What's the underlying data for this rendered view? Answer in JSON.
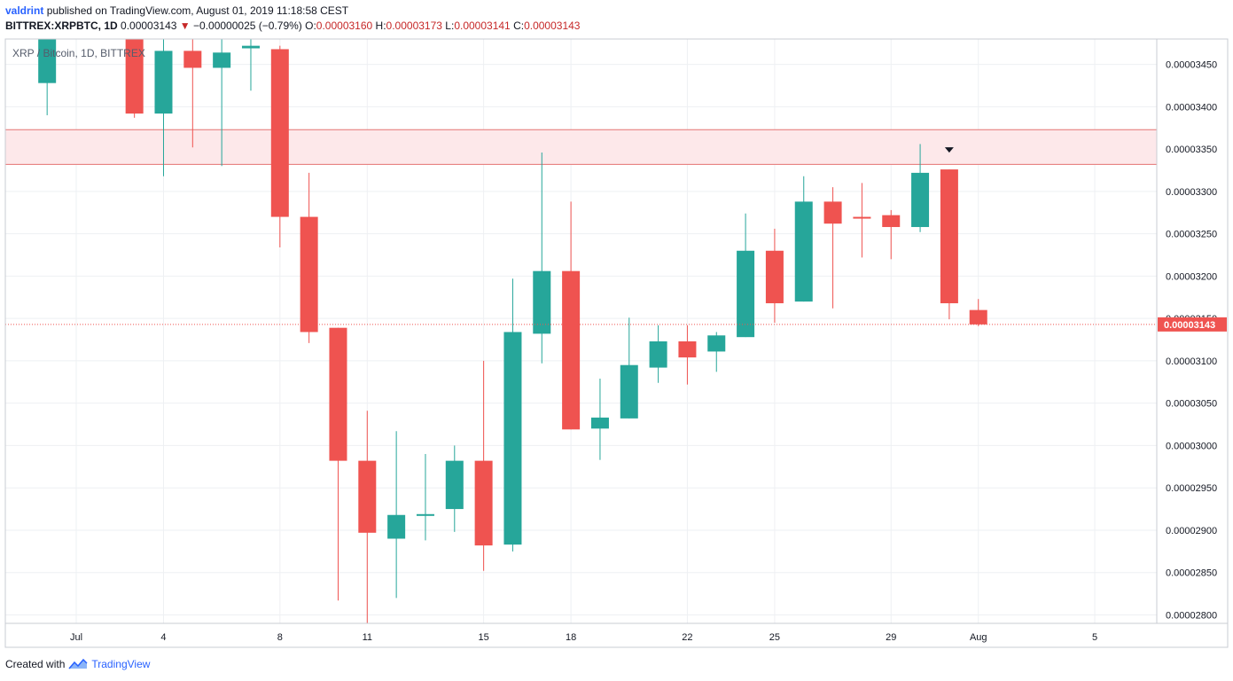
{
  "header": {
    "author": "valdrint",
    "published_text": "published on TradingView.com, August 01, 2019 11:18:58 CEST",
    "symbol": "BITTREX:XRPBTC, 1D",
    "last": "0.00003143",
    "change_arrow": "▼",
    "change": "−0.00000025 (−0.79%)",
    "o_label": "O:",
    "o_value": "0.00003160",
    "h_label": "H:",
    "h_value": "0.00003173",
    "l_label": "L:",
    "l_value": "0.00003141",
    "c_label": "C:",
    "c_value": "0.00003143"
  },
  "pane_title": "XRP / Bitcoin, 1D, BITTREX",
  "footer": {
    "created_with": "Created with",
    "brand": "TradingView"
  },
  "colors": {
    "up": "#26a69a",
    "down": "#ef5350",
    "zone_fill": "#fde8ea",
    "zone_line": "#e57373",
    "price_line": "#ef5350",
    "grid": "#eef0f3",
    "axis_text": "#131722"
  },
  "chart_data": {
    "type": "candlestick",
    "symbol": "XRPBTC",
    "exchange": "BITTREX",
    "interval": "1D",
    "ylim": [
      2.79e-05,
      3.48e-05
    ],
    "y_ticks": [
      "0.00002800",
      "0.00002850",
      "0.00002900",
      "0.00002950",
      "0.00003000",
      "0.00003050",
      "0.00003100",
      "0.00003150",
      "0.00003200",
      "0.00003250",
      "0.00003300",
      "0.00003350",
      "0.00003400",
      "0.00003450"
    ],
    "x_ticks": [
      {
        "label": "Jul",
        "date": "2019-07-01"
      },
      {
        "label": "4",
        "date": "2019-07-04"
      },
      {
        "label": "8",
        "date": "2019-07-08"
      },
      {
        "label": "11",
        "date": "2019-07-11"
      },
      {
        "label": "15",
        "date": "2019-07-15"
      },
      {
        "label": "18",
        "date": "2019-07-18"
      },
      {
        "label": "22",
        "date": "2019-07-22"
      },
      {
        "label": "25",
        "date": "2019-07-25"
      },
      {
        "label": "29",
        "date": "2019-07-29"
      },
      {
        "label": "Aug",
        "date": "2019-08-01"
      },
      {
        "label": "5",
        "date": "2019-08-05"
      }
    ],
    "candles": [
      {
        "date": "2019-06-30",
        "o": 3.428e-05,
        "h": 3.49e-05,
        "l": 3.39e-05,
        "c": 3.49e-05
      },
      {
        "date": "2019-07-03",
        "o": 3.5e-05,
        "h": 3.5e-05,
        "l": 3.387e-05,
        "c": 3.392e-05
      },
      {
        "date": "2019-07-04",
        "o": 3.392e-05,
        "h": 3.48e-05,
        "l": 3.318e-05,
        "c": 3.466e-05
      },
      {
        "date": "2019-07-05",
        "o": 3.466e-05,
        "h": 3.5e-05,
        "l": 3.352e-05,
        "c": 3.446e-05
      },
      {
        "date": "2019-07-06",
        "o": 3.446e-05,
        "h": 3.48e-05,
        "l": 3.33e-05,
        "c": 3.464e-05
      },
      {
        "date": "2019-07-07",
        "o": 3.469e-05,
        "h": 3.48e-05,
        "l": 3.419e-05,
        "c": 3.472e-05
      },
      {
        "date": "2019-07-08",
        "o": 3.468e-05,
        "h": 3.472e-05,
        "l": 3.234e-05,
        "c": 3.27e-05
      },
      {
        "date": "2019-07-09",
        "o": 3.27e-05,
        "h": 3.322e-05,
        "l": 3.121e-05,
        "c": 3.134e-05
      },
      {
        "date": "2019-07-10",
        "o": 3.139e-05,
        "h": 3.139e-05,
        "l": 2.817e-05,
        "c": 2.982e-05
      },
      {
        "date": "2019-07-11",
        "o": 2.982e-05,
        "h": 3.041e-05,
        "l": 2.79e-05,
        "c": 2.897e-05
      },
      {
        "date": "2019-07-12",
        "o": 2.89e-05,
        "h": 3.017e-05,
        "l": 2.82e-05,
        "c": 2.918e-05
      },
      {
        "date": "2019-07-13",
        "o": 2.918e-05,
        "h": 2.99e-05,
        "l": 2.888e-05,
        "c": 2.919e-05
      },
      {
        "date": "2019-07-14",
        "o": 2.925e-05,
        "h": 3e-05,
        "l": 2.898e-05,
        "c": 2.982e-05
      },
      {
        "date": "2019-07-15",
        "o": 2.982e-05,
        "h": 3.1e-05,
        "l": 2.852e-05,
        "c": 2.882e-05
      },
      {
        "date": "2019-07-16",
        "o": 2.883e-05,
        "h": 3.197e-05,
        "l": 2.875e-05,
        "c": 3.134e-05
      },
      {
        "date": "2019-07-17",
        "o": 3.132e-05,
        "h": 3.346e-05,
        "l": 3.097e-05,
        "c": 3.206e-05
      },
      {
        "date": "2019-07-18",
        "o": 3.206e-05,
        "h": 3.288e-05,
        "l": 3.019e-05,
        "c": 3.019e-05
      },
      {
        "date": "2019-07-19",
        "o": 3.02e-05,
        "h": 3.079e-05,
        "l": 2.983e-05,
        "c": 3.033e-05
      },
      {
        "date": "2019-07-20",
        "o": 3.032e-05,
        "h": 3.151e-05,
        "l": 3.032e-05,
        "c": 3.095e-05
      },
      {
        "date": "2019-07-21",
        "o": 3.092e-05,
        "h": 3.142e-05,
        "l": 3.074e-05,
        "c": 3.123e-05
      },
      {
        "date": "2019-07-22",
        "o": 3.123e-05,
        "h": 3.142e-05,
        "l": 3.072e-05,
        "c": 3.104e-05
      },
      {
        "date": "2019-07-23",
        "o": 3.111e-05,
        "h": 3.134e-05,
        "l": 3.087e-05,
        "c": 3.13e-05
      },
      {
        "date": "2019-07-24",
        "o": 3.128e-05,
        "h": 3.274e-05,
        "l": 3.128e-05,
        "c": 3.23e-05
      },
      {
        "date": "2019-07-25",
        "o": 3.23e-05,
        "h": 3.256e-05,
        "l": 3.145e-05,
        "c": 3.168e-05
      },
      {
        "date": "2019-07-26",
        "o": 3.17e-05,
        "h": 3.318e-05,
        "l": 3.17e-05,
        "c": 3.288e-05
      },
      {
        "date": "2019-07-27",
        "o": 3.288e-05,
        "h": 3.305e-05,
        "l": 3.162e-05,
        "c": 3.262e-05
      },
      {
        "date": "2019-07-28",
        "o": 3.27e-05,
        "h": 3.31e-05,
        "l": 3.222e-05,
        "c": 3.268e-05
      },
      {
        "date": "2019-07-29",
        "o": 3.272e-05,
        "h": 3.278e-05,
        "l": 3.22e-05,
        "c": 3.258e-05
      },
      {
        "date": "2019-07-30",
        "o": 3.258e-05,
        "h": 3.356e-05,
        "l": 3.252e-05,
        "c": 3.322e-05
      },
      {
        "date": "2019-07-31",
        "o": 3.326e-05,
        "h": 3.326e-05,
        "l": 3.149e-05,
        "c": 3.168e-05
      },
      {
        "date": "2019-08-01",
        "o": 3.16e-05,
        "h": 3.173e-05,
        "l": 3.141e-05,
        "c": 3.143e-05
      }
    ],
    "resistance_zone": [
      3.332e-05,
      3.373e-05
    ],
    "last_price": 3.143e-05,
    "last_price_label": "0.00003143",
    "marker": {
      "date": "2019-07-31",
      "price": 3.35e-05,
      "shape": "down-triangle"
    },
    "grid": true
  }
}
